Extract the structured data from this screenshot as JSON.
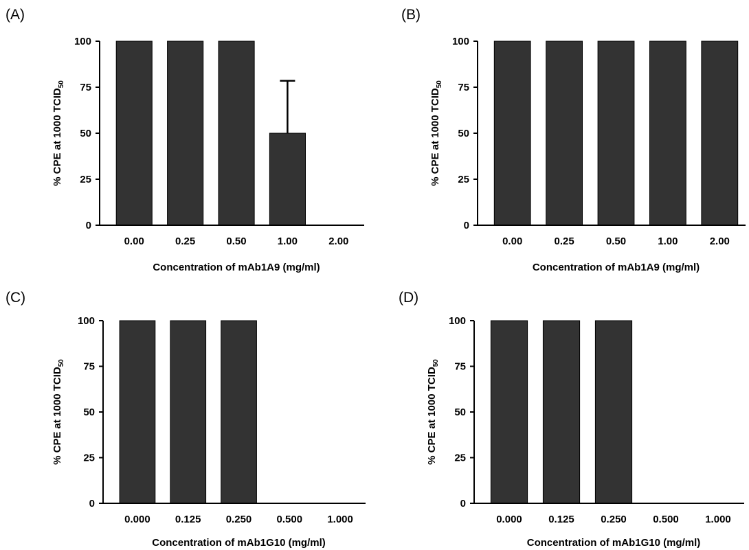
{
  "chart_data": [
    {
      "type": "bar",
      "panel_label": "(A)",
      "categories": [
        "0.00",
        "0.25",
        "0.50",
        "1.00",
        "2.00"
      ],
      "values": [
        100,
        100,
        100,
        50,
        0
      ],
      "error_bars": [
        0,
        0,
        0,
        28.5,
        0
      ],
      "yticks": [
        0,
        25,
        50,
        75,
        100
      ],
      "ylim": [
        0,
        100
      ],
      "xlabel": "Concentration of mAb1A9 (mg/ml)",
      "ylabel": "% CPE at 1000 TCID",
      "ylabel_subscript": "50"
    },
    {
      "type": "bar",
      "panel_label": "(B)",
      "categories": [
        "0.00",
        "0.25",
        "0.50",
        "1.00",
        "2.00"
      ],
      "values": [
        100,
        100,
        100,
        100,
        100
      ],
      "error_bars": [
        0,
        0,
        0,
        0,
        0
      ],
      "yticks": [
        0,
        25,
        50,
        75,
        100
      ],
      "ylim": [
        0,
        100
      ],
      "xlabel": "Concentration of mAb1A9 (mg/ml)",
      "ylabel": "% CPE at 1000 TCID",
      "ylabel_subscript": "50"
    },
    {
      "type": "bar",
      "panel_label": "(C)",
      "categories": [
        "0.000",
        "0.125",
        "0.250",
        "0.500",
        "1.000"
      ],
      "values": [
        100,
        100,
        100,
        0,
        0
      ],
      "error_bars": [
        0,
        0,
        0,
        0,
        0
      ],
      "yticks": [
        0,
        25,
        50,
        75,
        100
      ],
      "ylim": [
        0,
        100
      ],
      "xlabel": "Concentration of mAb1G10 (mg/ml)",
      "ylabel": "% CPE at 1000 TCID",
      "ylabel_subscript": "50"
    },
    {
      "type": "bar",
      "panel_label": "(D)",
      "categories": [
        "0.000",
        "0.125",
        "0.250",
        "0.500",
        "1.000"
      ],
      "values": [
        100,
        100,
        100,
        0,
        0
      ],
      "error_bars": [
        0,
        0,
        0,
        0,
        0
      ],
      "yticks": [
        0,
        25,
        50,
        75,
        100
      ],
      "ylim": [
        0,
        100
      ],
      "xlabel": "Concentration of mAb1G10 (mg/ml)",
      "ylabel": "% CPE at 1000 TCID",
      "ylabel_subscript": "50"
    }
  ],
  "colors": {
    "bar_fill": "#333333",
    "axis": "#000000"
  }
}
